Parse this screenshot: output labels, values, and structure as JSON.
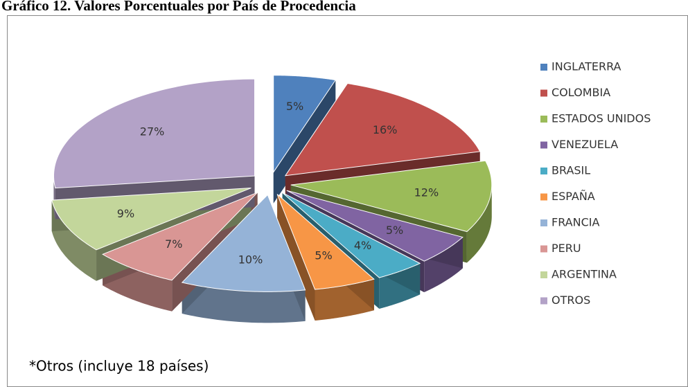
{
  "chart_data": {
    "type": "pie",
    "title": "Gráfico 12. Valores Porcentuales por País de Procedencia",
    "annotation": "*Otros (incluye 18 países)",
    "categories": [
      "INGLATERRA",
      "COLOMBIA",
      "ESTADOS UNIDOS",
      "VENEZUELA",
      "BRASIL",
      "ESPAÑA",
      "FRANCIA",
      "PERU",
      "ARGENTINA",
      "OTROS"
    ],
    "values": [
      5,
      16,
      12,
      5,
      4,
      5,
      10,
      7,
      9,
      27
    ],
    "value_labels": [
      "5%",
      "16%",
      "12%",
      "5%",
      "4%",
      "5%",
      "10%",
      "7%",
      "9%",
      "27%"
    ],
    "colors": [
      "#4f81bd",
      "#c0504d",
      "#9bbb59",
      "#8064a2",
      "#4bacc6",
      "#f79646",
      "#95b3d7",
      "#d99694",
      "#c3d69b",
      "#b3a2c7"
    ],
    "legend": "right"
  }
}
